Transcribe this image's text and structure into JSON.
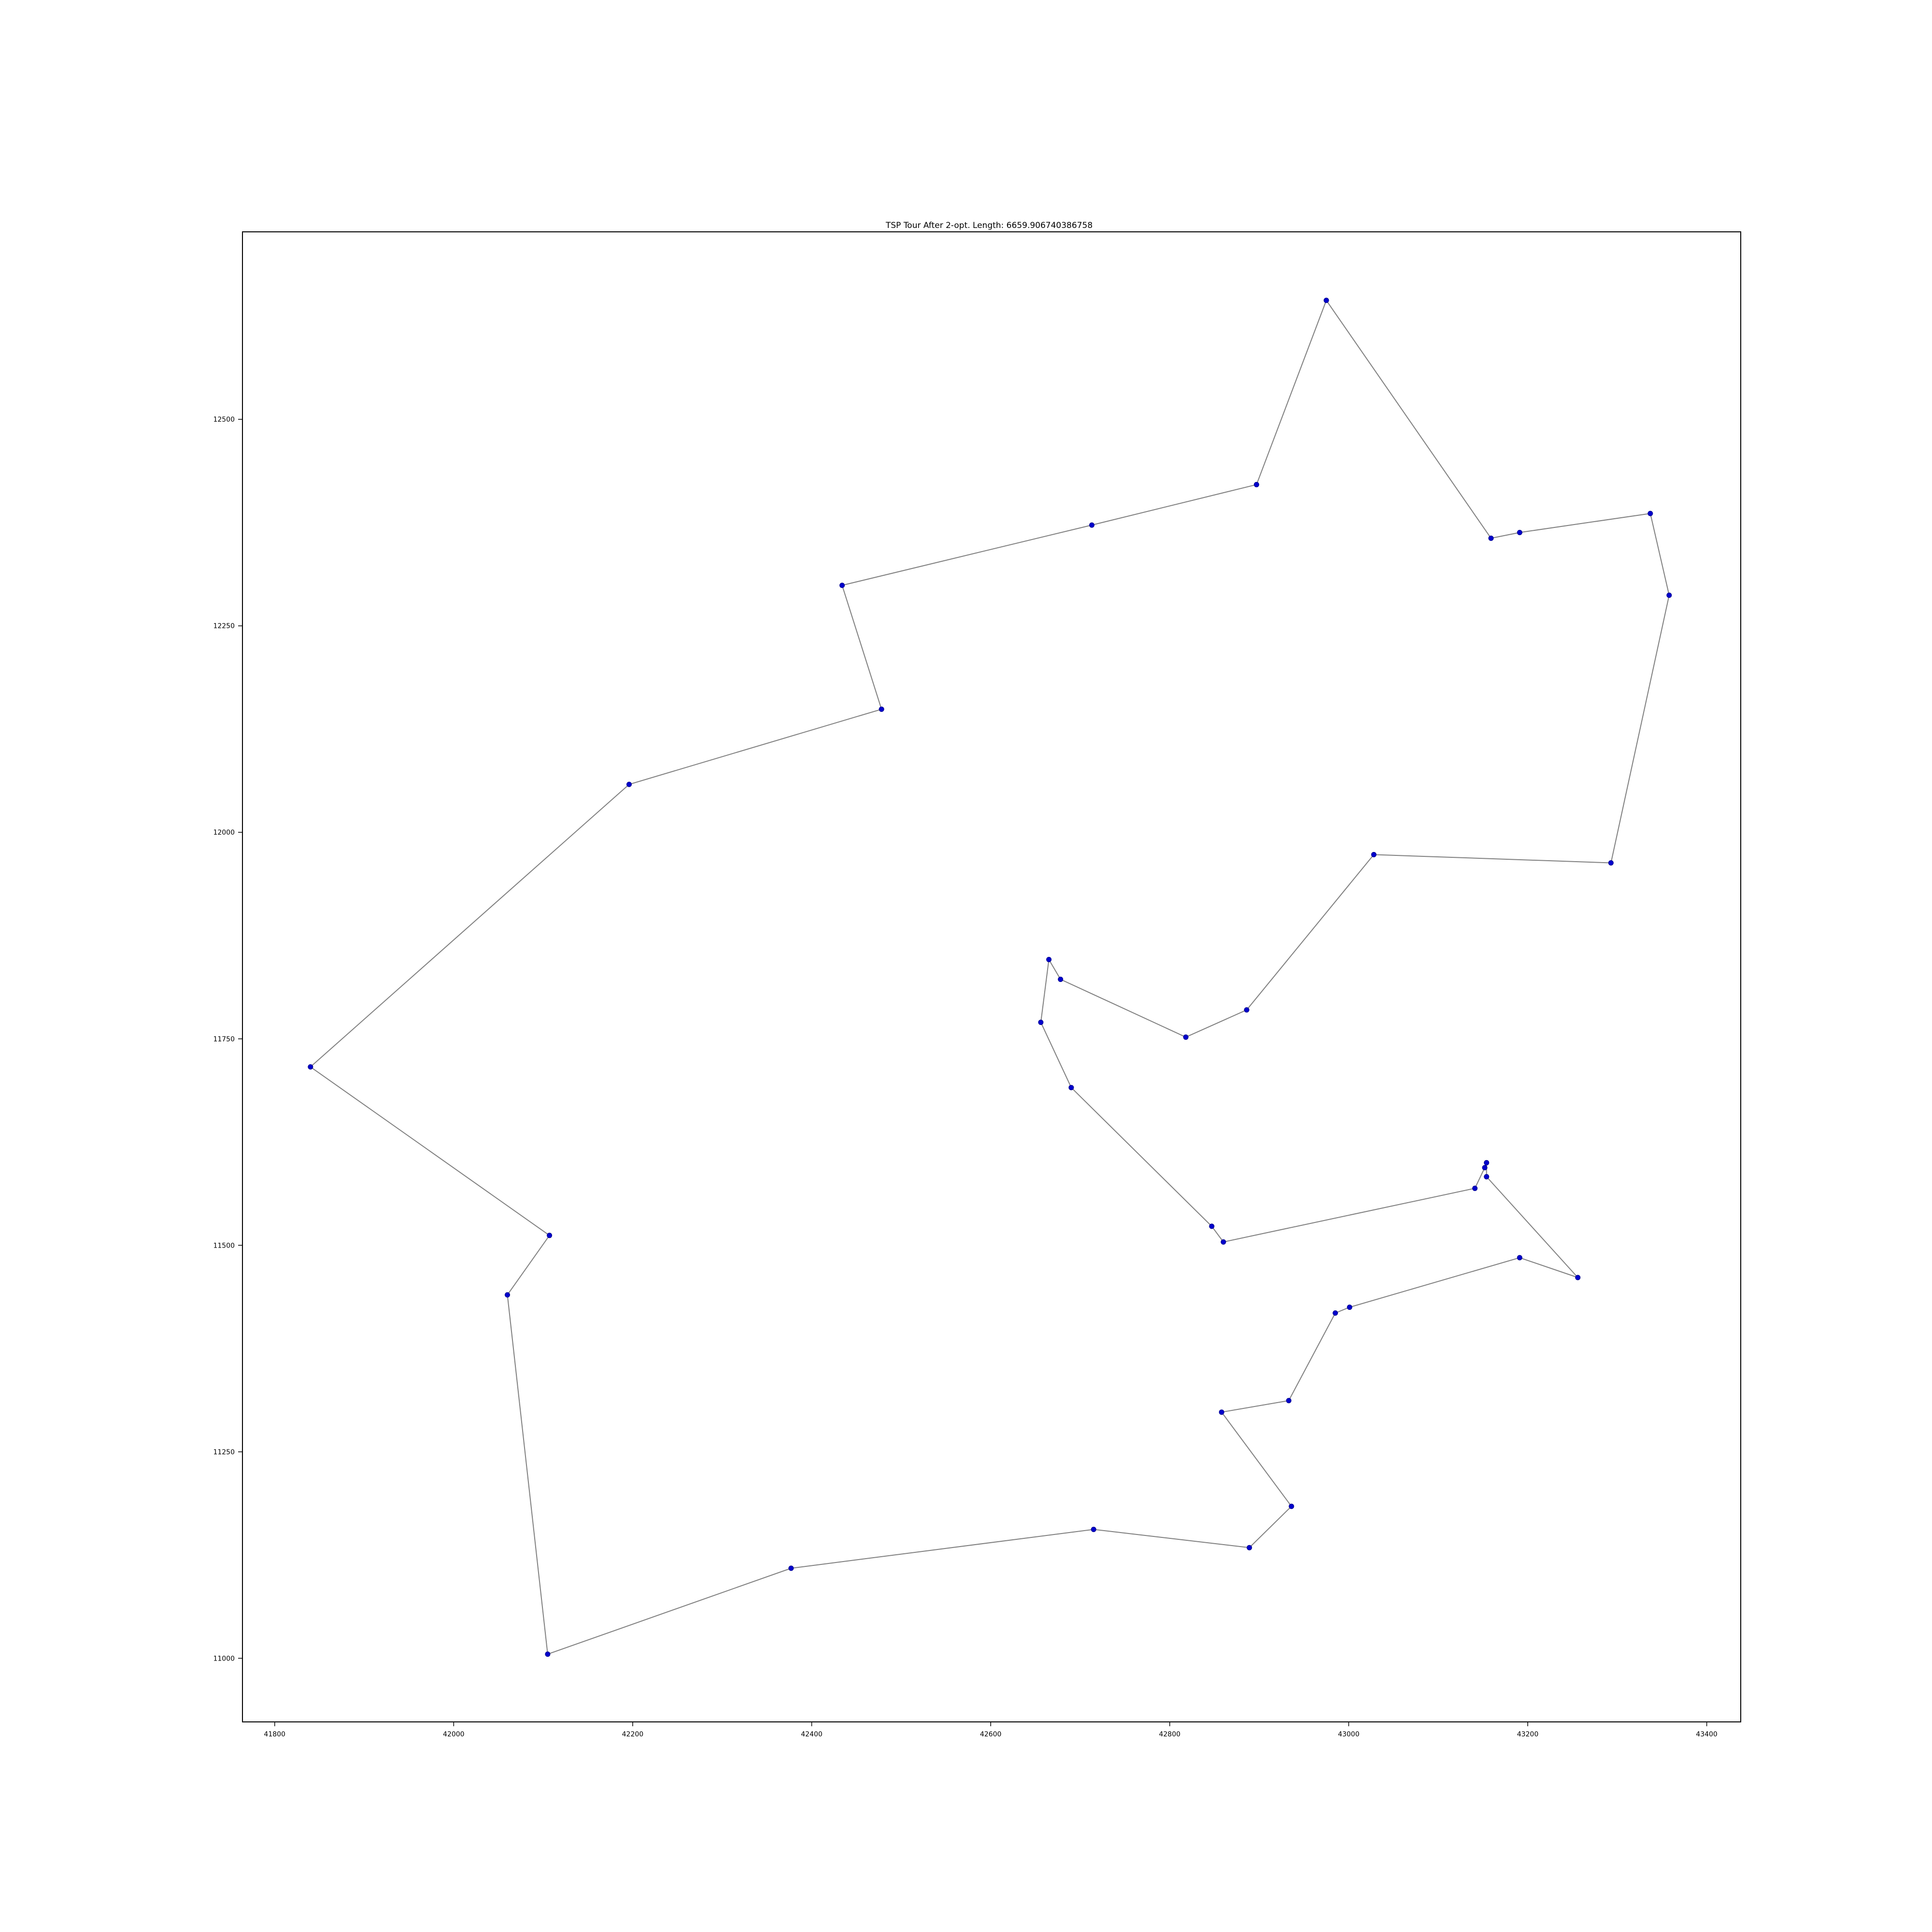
{
  "chart_data": {
    "type": "line",
    "title": "TSP Tour After 2-opt. Length: 6659.906740386758",
    "xlabel": "",
    "ylabel": "",
    "xlim": [
      41764,
      43438
    ],
    "ylim": [
      10923,
      12727
    ],
    "xticks": [
      41800,
      42000,
      42200,
      42400,
      42600,
      42800,
      43000,
      43200,
      43400
    ],
    "yticks": [
      11000,
      11250,
      11500,
      11750,
      12000,
      12250,
      12500
    ],
    "xtick_labels": [
      "41800",
      "42000",
      "42200",
      "42400",
      "42600",
      "42800",
      "43000",
      "43200",
      "43400"
    ],
    "ytick_labels": [
      "11000",
      "11250",
      "11500",
      "11750",
      "12000",
      "12250",
      "12500"
    ],
    "grid": false,
    "legend": "none",
    "line_color": "#808080",
    "marker_color": "#0000cc",
    "tour": [
      [
        41840,
        11716
      ],
      [
        42196,
        12058
      ],
      [
        42478,
        12149
      ],
      [
        42434,
        12299
      ],
      [
        42713,
        12372
      ],
      [
        42897,
        12421
      ],
      [
        42975,
        12644
      ],
      [
        43159,
        12356
      ],
      [
        43191,
        12363
      ],
      [
        43337,
        12386
      ],
      [
        43358,
        12287
      ],
      [
        43293,
        11963
      ],
      [
        43028,
        11973
      ],
      [
        42886,
        11785
      ],
      [
        42818,
        11752
      ],
      [
        42678,
        11822
      ],
      [
        42665,
        11846
      ],
      [
        42656,
        11770
      ],
      [
        42690,
        11691
      ],
      [
        42847,
        11523
      ],
      [
        42860,
        11504
      ],
      [
        43141,
        11569
      ],
      [
        43152,
        11594
      ],
      [
        43154,
        11600
      ],
      [
        43154,
        11583
      ],
      [
        43256,
        11461
      ],
      [
        43191,
        11485
      ],
      [
        43001,
        11425
      ],
      [
        42985,
        11418
      ],
      [
        42933,
        11312
      ],
      [
        42858,
        11298
      ],
      [
        42936,
        11184
      ],
      [
        42889,
        11134
      ],
      [
        42715,
        11156
      ],
      [
        42377,
        11109
      ],
      [
        42105,
        11005
      ],
      [
        42060,
        11440
      ],
      [
        42107,
        11512
      ],
      [
        41840,
        11716
      ]
    ]
  }
}
